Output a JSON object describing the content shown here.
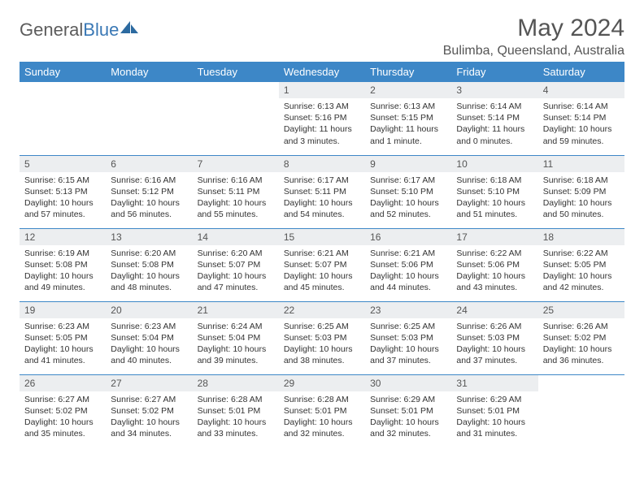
{
  "logo": {
    "part1": "General",
    "part2": "Blue"
  },
  "title": "May 2024",
  "subtitle": "Bulimba, Queensland, Australia",
  "colors": {
    "header_bg": "#3d87c7",
    "header_fg": "#ffffff",
    "daynum_bg": "#eceef0",
    "row_divider": "#3d87c7",
    "title_color": "#555555",
    "logo_gray": "#5c5c5c",
    "logo_blue": "#3a78b5"
  },
  "day_headers": [
    "Sunday",
    "Monday",
    "Tuesday",
    "Wednesday",
    "Thursday",
    "Friday",
    "Saturday"
  ],
  "weeks": [
    [
      null,
      null,
      null,
      {
        "n": "1",
        "sr": "6:13 AM",
        "ss": "5:16 PM",
        "dl": "11 hours and 3 minutes."
      },
      {
        "n": "2",
        "sr": "6:13 AM",
        "ss": "5:15 PM",
        "dl": "11 hours and 1 minute."
      },
      {
        "n": "3",
        "sr": "6:14 AM",
        "ss": "5:14 PM",
        "dl": "11 hours and 0 minutes."
      },
      {
        "n": "4",
        "sr": "6:14 AM",
        "ss": "5:14 PM",
        "dl": "10 hours and 59 minutes."
      }
    ],
    [
      {
        "n": "5",
        "sr": "6:15 AM",
        "ss": "5:13 PM",
        "dl": "10 hours and 57 minutes."
      },
      {
        "n": "6",
        "sr": "6:16 AM",
        "ss": "5:12 PM",
        "dl": "10 hours and 56 minutes."
      },
      {
        "n": "7",
        "sr": "6:16 AM",
        "ss": "5:11 PM",
        "dl": "10 hours and 55 minutes."
      },
      {
        "n": "8",
        "sr": "6:17 AM",
        "ss": "5:11 PM",
        "dl": "10 hours and 54 minutes."
      },
      {
        "n": "9",
        "sr": "6:17 AM",
        "ss": "5:10 PM",
        "dl": "10 hours and 52 minutes."
      },
      {
        "n": "10",
        "sr": "6:18 AM",
        "ss": "5:10 PM",
        "dl": "10 hours and 51 minutes."
      },
      {
        "n": "11",
        "sr": "6:18 AM",
        "ss": "5:09 PM",
        "dl": "10 hours and 50 minutes."
      }
    ],
    [
      {
        "n": "12",
        "sr": "6:19 AM",
        "ss": "5:08 PM",
        "dl": "10 hours and 49 minutes."
      },
      {
        "n": "13",
        "sr": "6:20 AM",
        "ss": "5:08 PM",
        "dl": "10 hours and 48 minutes."
      },
      {
        "n": "14",
        "sr": "6:20 AM",
        "ss": "5:07 PM",
        "dl": "10 hours and 47 minutes."
      },
      {
        "n": "15",
        "sr": "6:21 AM",
        "ss": "5:07 PM",
        "dl": "10 hours and 45 minutes."
      },
      {
        "n": "16",
        "sr": "6:21 AM",
        "ss": "5:06 PM",
        "dl": "10 hours and 44 minutes."
      },
      {
        "n": "17",
        "sr": "6:22 AM",
        "ss": "5:06 PM",
        "dl": "10 hours and 43 minutes."
      },
      {
        "n": "18",
        "sr": "6:22 AM",
        "ss": "5:05 PM",
        "dl": "10 hours and 42 minutes."
      }
    ],
    [
      {
        "n": "19",
        "sr": "6:23 AM",
        "ss": "5:05 PM",
        "dl": "10 hours and 41 minutes."
      },
      {
        "n": "20",
        "sr": "6:23 AM",
        "ss": "5:04 PM",
        "dl": "10 hours and 40 minutes."
      },
      {
        "n": "21",
        "sr": "6:24 AM",
        "ss": "5:04 PM",
        "dl": "10 hours and 39 minutes."
      },
      {
        "n": "22",
        "sr": "6:25 AM",
        "ss": "5:03 PM",
        "dl": "10 hours and 38 minutes."
      },
      {
        "n": "23",
        "sr": "6:25 AM",
        "ss": "5:03 PM",
        "dl": "10 hours and 37 minutes."
      },
      {
        "n": "24",
        "sr": "6:26 AM",
        "ss": "5:03 PM",
        "dl": "10 hours and 37 minutes."
      },
      {
        "n": "25",
        "sr": "6:26 AM",
        "ss": "5:02 PM",
        "dl": "10 hours and 36 minutes."
      }
    ],
    [
      {
        "n": "26",
        "sr": "6:27 AM",
        "ss": "5:02 PM",
        "dl": "10 hours and 35 minutes."
      },
      {
        "n": "27",
        "sr": "6:27 AM",
        "ss": "5:02 PM",
        "dl": "10 hours and 34 minutes."
      },
      {
        "n": "28",
        "sr": "6:28 AM",
        "ss": "5:01 PM",
        "dl": "10 hours and 33 minutes."
      },
      {
        "n": "29",
        "sr": "6:28 AM",
        "ss": "5:01 PM",
        "dl": "10 hours and 32 minutes."
      },
      {
        "n": "30",
        "sr": "6:29 AM",
        "ss": "5:01 PM",
        "dl": "10 hours and 32 minutes."
      },
      {
        "n": "31",
        "sr": "6:29 AM",
        "ss": "5:01 PM",
        "dl": "10 hours and 31 minutes."
      },
      null
    ]
  ],
  "labels": {
    "sunrise_prefix": "Sunrise: ",
    "sunset_prefix": "Sunset: ",
    "daylight_prefix": "Daylight: "
  }
}
